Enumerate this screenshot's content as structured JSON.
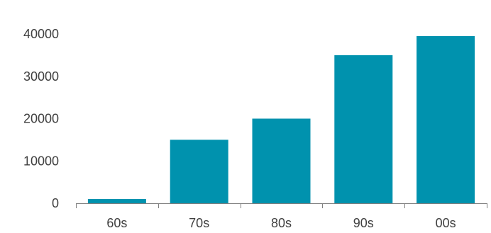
{
  "chart_data": {
    "type": "bar",
    "title": "",
    "xlabel": "",
    "ylabel": "",
    "categories": [
      "60s",
      "70s",
      "80s",
      "90s",
      "00s"
    ],
    "values": [
      1000,
      15000,
      20000,
      35000,
      39500
    ],
    "ylim": [
      0,
      40000
    ],
    "yticks": [
      0,
      10000,
      20000,
      30000,
      40000
    ],
    "grid": false,
    "legend": "none",
    "bar_color": "#0092AE"
  }
}
